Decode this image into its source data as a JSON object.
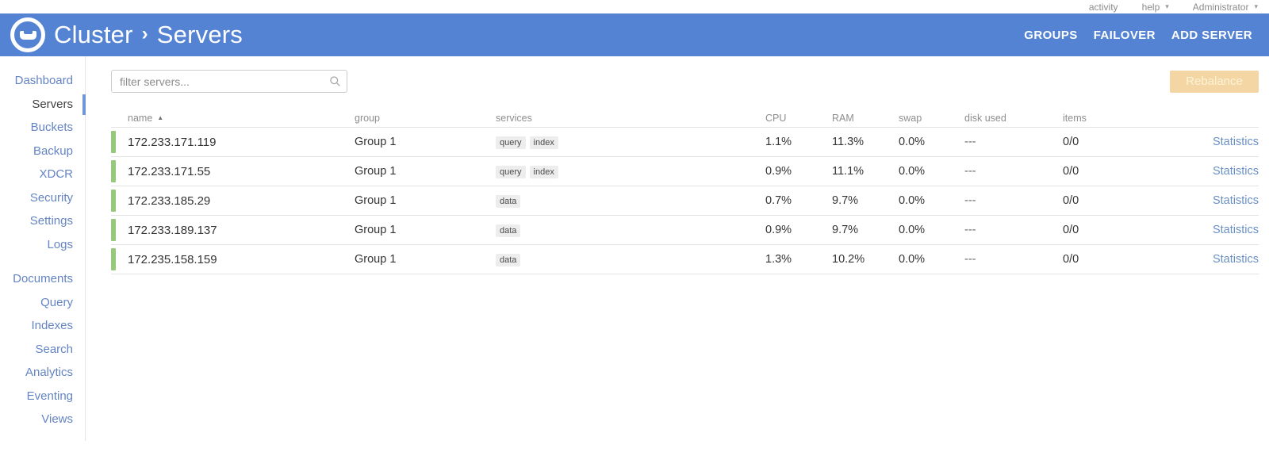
{
  "topbar": {
    "activity": "activity",
    "help": "help",
    "user": "Administrator"
  },
  "header": {
    "breadcrumb": {
      "cluster": "Cluster",
      "separator": "›",
      "page": "Servers"
    },
    "nav": [
      {
        "label": "GROUPS"
      },
      {
        "label": "FAILOVER"
      },
      {
        "label": "ADD SERVER"
      }
    ]
  },
  "sidebar": {
    "main_items": [
      {
        "label": "Dashboard",
        "active": false
      },
      {
        "label": "Servers",
        "active": true
      },
      {
        "label": "Buckets",
        "active": false
      },
      {
        "label": "Backup",
        "active": false
      },
      {
        "label": "XDCR",
        "active": false
      },
      {
        "label": "Security",
        "active": false
      },
      {
        "label": "Settings",
        "active": false
      },
      {
        "label": "Logs",
        "active": false
      }
    ],
    "secondary_items": [
      {
        "label": "Documents",
        "active": false
      },
      {
        "label": "Query",
        "active": false
      },
      {
        "label": "Indexes",
        "active": false
      },
      {
        "label": "Search",
        "active": false
      },
      {
        "label": "Analytics",
        "active": false
      },
      {
        "label": "Eventing",
        "active": false
      },
      {
        "label": "Views",
        "active": false
      }
    ]
  },
  "toolbar": {
    "filter_placeholder": "filter servers...",
    "rebalance_label": "Rebalance",
    "rebalance_enabled": false
  },
  "servers_table": {
    "columns": [
      "name",
      "group",
      "services",
      "CPU",
      "RAM",
      "swap",
      "disk used",
      "items"
    ],
    "sort": {
      "column": "name",
      "direction": "asc"
    },
    "row_link_label": "Statistics",
    "rows": [
      {
        "name": "172.233.171.119",
        "group": "Group 1",
        "services": [
          "query",
          "index"
        ],
        "cpu": "1.1%",
        "ram": "11.3%",
        "swap": "0.0%",
        "disk_used": "---",
        "items": "0/0",
        "status": "healthy"
      },
      {
        "name": "172.233.171.55",
        "group": "Group 1",
        "services": [
          "query",
          "index"
        ],
        "cpu": "0.9%",
        "ram": "11.1%",
        "swap": "0.0%",
        "disk_used": "---",
        "items": "0/0",
        "status": "healthy"
      },
      {
        "name": "172.233.185.29",
        "group": "Group 1",
        "services": [
          "data"
        ],
        "cpu": "0.7%",
        "ram": "9.7%",
        "swap": "0.0%",
        "disk_used": "---",
        "items": "0/0",
        "status": "healthy"
      },
      {
        "name": "172.233.189.137",
        "group": "Group 1",
        "services": [
          "data"
        ],
        "cpu": "0.9%",
        "ram": "9.7%",
        "swap": "0.0%",
        "disk_used": "---",
        "items": "0/0",
        "status": "healthy"
      },
      {
        "name": "172.235.158.159",
        "group": "Group 1",
        "services": [
          "data"
        ],
        "cpu": "1.3%",
        "ram": "10.2%",
        "swap": "0.0%",
        "disk_used": "---",
        "items": "0/0",
        "status": "healthy"
      }
    ]
  },
  "colors": {
    "header-blue": "#5583d3",
    "sidebar-link": "#6484c4",
    "active-text": "#3f3f3f",
    "accent-bar": "#6e96d8",
    "status-green": "#97c97d",
    "link-blue": "#6990c5",
    "rebalance-bg": "#f3d6a4",
    "rebalance-text": "#fdf2d7",
    "badge-bg": "#ededed",
    "border": "#e2e2e2",
    "muted": "#8b8b8b",
    "text": "#333333"
  }
}
